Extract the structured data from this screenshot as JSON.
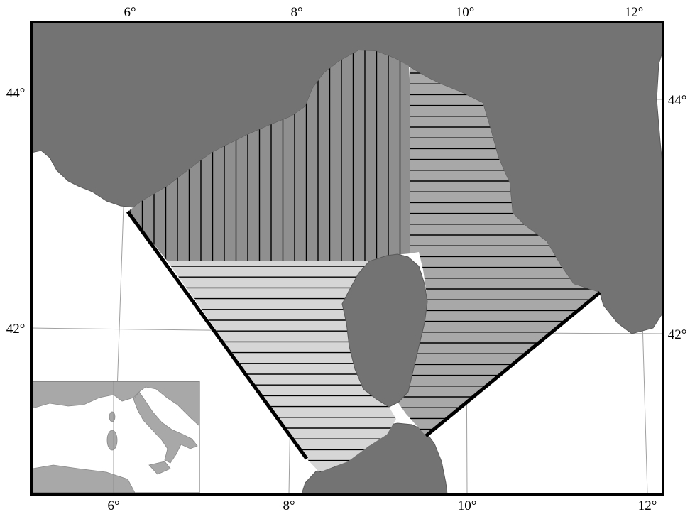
{
  "map": {
    "top_longitude_labels": [
      "6°",
      "8°",
      "10°",
      "12°"
    ],
    "bottom_longitude_labels": [
      "6°",
      "8°",
      "10°",
      "12°"
    ],
    "left_latitude_labels": [
      "44°",
      "42°"
    ],
    "right_latitude_labels": [
      "44°",
      "42°"
    ],
    "colors": {
      "land": "#737373",
      "sea": "#ffffff",
      "zone_vertical_hatch": "#8f8f8f",
      "zone_horizontal_hatch_east": "#a8a8a8",
      "zone_horizontal_hatch_southwest": "#d6d6d6",
      "hatch_line": "#000000",
      "graticule": "#a0a0a0",
      "frame": "#000000"
    },
    "inset": {
      "description_icon": "italy-locator-inset"
    }
  }
}
